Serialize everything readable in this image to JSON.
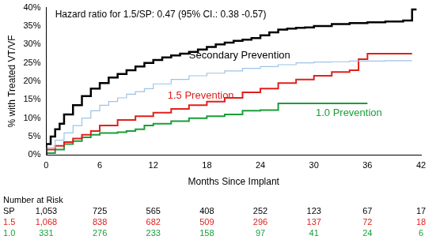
{
  "chart_data": {
    "type": "line",
    "line_style": "step",
    "grid": false,
    "x_label": "Months Since Implant",
    "y_label": "% with Treated VT/VF",
    "xlim": [
      0,
      42
    ],
    "xticks": [
      0,
      6,
      12,
      18,
      24,
      30,
      36,
      42
    ],
    "ylim": [
      0,
      40
    ],
    "yticks": [
      {
        "value": 0,
        "label": "0%"
      },
      {
        "value": 5,
        "label": "5%"
      },
      {
        "value": 10,
        "label": "10%"
      },
      {
        "value": 15,
        "label": "15%"
      },
      {
        "value": 20,
        "label": "20%"
      },
      {
        "value": 25,
        "label": "25%"
      },
      {
        "value": 30,
        "label": "30%"
      },
      {
        "value": 35,
        "label": "35%"
      },
      {
        "value": 40,
        "label": "40%"
      }
    ],
    "series": [
      {
        "name": "Secondary Prevention",
        "color": "#000000",
        "x": [
          0,
          0.5,
          1,
          1.5,
          2,
          3,
          4,
          5,
          6,
          7,
          8,
          9,
          10,
          11,
          12,
          13,
          14,
          15,
          16,
          17,
          18,
          19,
          20,
          21,
          22,
          23,
          24,
          25,
          26,
          27,
          28,
          29,
          30,
          32,
          34,
          36,
          38,
          40,
          41,
          41.5
        ],
        "values": [
          0,
          3,
          5,
          7,
          8.5,
          11,
          13.5,
          16,
          18,
          19.5,
          21,
          22,
          23,
          24,
          25,
          25.8,
          26.5,
          27,
          27.5,
          28,
          28.6,
          29.3,
          30,
          30.5,
          31,
          31.3,
          31.7,
          32.5,
          33.3,
          34,
          34.3,
          34.5,
          34.6,
          35,
          35.5,
          35.8,
          36,
          36.2,
          36.5,
          39.5
        ]
      },
      {
        "color": "#9dc3e6",
        "x": [
          0,
          1,
          2,
          3,
          4,
          5,
          6,
          7,
          8,
          9,
          10,
          11,
          12,
          14,
          16,
          18,
          20,
          22,
          24,
          26,
          28,
          30,
          32,
          34,
          36,
          38,
          40,
          41
        ],
        "values": [
          0,
          2,
          4,
          6,
          8,
          10,
          12,
          13.5,
          14.5,
          15.5,
          16.5,
          17.2,
          18,
          19.3,
          20.5,
          21.5,
          22.2,
          22.8,
          23.5,
          24,
          24.5,
          25,
          25.2,
          25.3,
          25.5,
          25.5,
          25.6,
          25.6
        ]
      },
      {
        "name": "1.5 Prevention",
        "color": "#e0201b",
        "x": [
          0,
          1,
          2,
          3,
          4,
          5,
          6,
          8,
          10,
          12,
          14,
          16,
          18,
          20,
          22,
          24,
          26,
          28,
          30,
          32,
          34,
          35,
          35.5,
          36,
          36.5,
          41
        ],
        "values": [
          0,
          1.5,
          2.5,
          3.5,
          4.5,
          5.5,
          6.5,
          8,
          9.5,
          10.5,
          11.5,
          12.5,
          13.5,
          14.5,
          15.5,
          17,
          18,
          19.5,
          20.5,
          21.5,
          22.5,
          23,
          26,
          26,
          27.5,
          27.5
        ]
      },
      {
        "name": "1.0 Prevention",
        "color": "#1a9e3a",
        "x": [
          0,
          1,
          2,
          3,
          4,
          5,
          6,
          7,
          8,
          9,
          10,
          11,
          12,
          14,
          16,
          18,
          20,
          22,
          24,
          26,
          28,
          36
        ],
        "values": [
          0,
          0.5,
          1.5,
          3,
          3.8,
          4.8,
          5.5,
          6,
          6,
          6.2,
          6.5,
          7,
          8,
          8.5,
          9.2,
          10,
          10.5,
          11,
          12,
          12.2,
          14,
          14
        ]
      }
    ],
    "annotations": [
      {
        "text": "Hazard ratio for 1.5/SP: 0.47 (95% CI.: 0.38 -0.57)",
        "x": 1,
        "y": 38,
        "color": "#000000"
      },
      {
        "text": "Secondary Prevention",
        "x": 16,
        "y": 27,
        "color": "#000000"
      },
      {
        "text": "1.5 Prevention",
        "x": 13.6,
        "y": 16,
        "color": "#e0201b"
      },
      {
        "text": "1.0 Prevention",
        "x": 30.2,
        "y": 11.4,
        "color": "#1a9e3a"
      }
    ],
    "risk_table": {
      "title": "Number at Risk",
      "rows": [
        {
          "label": "SP",
          "color": "#000000",
          "values": [
            1053,
            725,
            565,
            408,
            252,
            123,
            67,
            17
          ]
        },
        {
          "label": "1.5",
          "color": "#e0201b",
          "values": [
            1068,
            838,
            682,
            509,
            296,
            137,
            72,
            18
          ]
        },
        {
          "label": "1.0",
          "color": "#1a9e3a",
          "values": [
            331,
            276,
            233,
            158,
            97,
            41,
            24,
            6
          ]
        }
      ]
    }
  }
}
